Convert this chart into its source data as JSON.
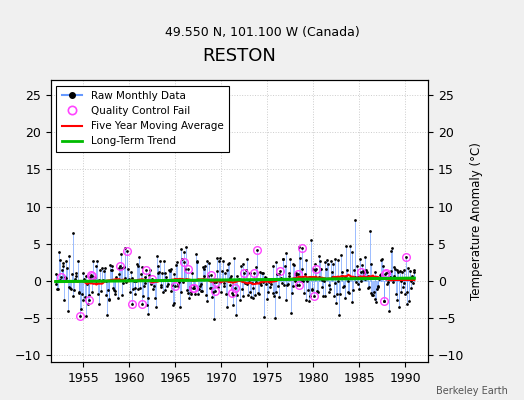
{
  "title": "RESTON",
  "subtitle": "49.550 N, 101.100 W (Canada)",
  "ylabel_right": "Temperature Anomaly (°C)",
  "watermark": "Berkeley Earth",
  "xlim": [
    1951.5,
    1992.5
  ],
  "ylim": [
    -11,
    27
  ],
  "yticks": [
    -10,
    -5,
    0,
    5,
    10,
    15,
    20,
    25
  ],
  "xticks": [
    1955,
    1960,
    1965,
    1970,
    1975,
    1980,
    1985,
    1990
  ],
  "bg_color": "#ffffff",
  "fig_color": "#f0f0f0",
  "line_color": "#6699ff",
  "dot_color": "#000000",
  "ma_color": "#ff0000",
  "trend_color": "#00bb00",
  "qc_color": "#ff44ff",
  "title_fontsize": 13,
  "subtitle_fontsize": 9,
  "legend_fontsize": 7.5,
  "tick_fontsize": 9,
  "seed": 12345
}
